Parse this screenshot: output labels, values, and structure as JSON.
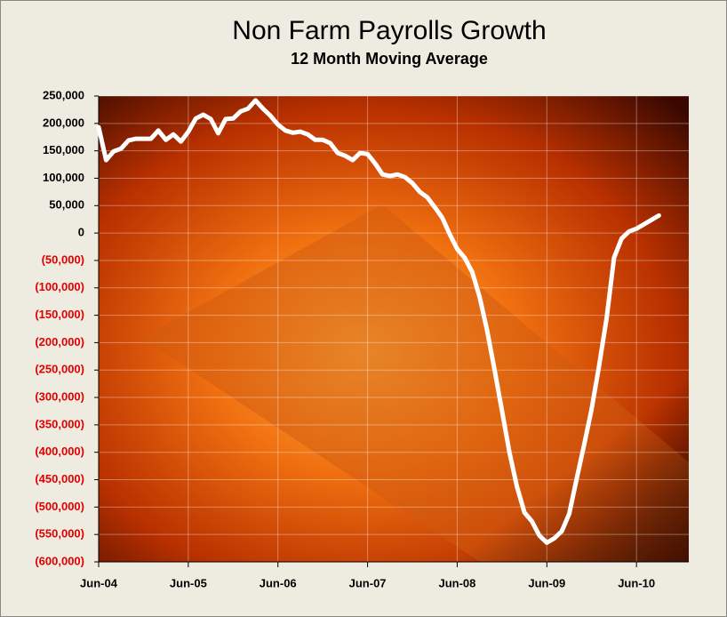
{
  "chart_data": {
    "type": "line",
    "title": "Non Farm Payrolls Growth",
    "subtitle": "12 Month Moving Average",
    "categories": [
      "Jun-04",
      null,
      null,
      null,
      null,
      null,
      null,
      null,
      null,
      null,
      null,
      null,
      "Jun-05",
      null,
      null,
      null,
      null,
      null,
      null,
      null,
      null,
      null,
      null,
      null,
      "Jun-06",
      null,
      null,
      null,
      null,
      null,
      null,
      null,
      null,
      null,
      null,
      null,
      "Jun-07",
      null,
      null,
      null,
      null,
      null,
      null,
      null,
      null,
      null,
      null,
      null,
      "Jun-08",
      null,
      null,
      null,
      null,
      null,
      null,
      null,
      null,
      null,
      null,
      null,
      "Jun-09",
      null,
      null,
      null,
      null,
      null,
      null,
      null,
      null,
      null,
      null,
      null,
      "Jun-10",
      null,
      null,
      null
    ],
    "series": [
      {
        "color": "#ffffff",
        "values": [
          193000,
          133000,
          149000,
          154000,
          169000,
          172000,
          172000,
          172000,
          187000,
          170000,
          180000,
          167000,
          185000,
          209000,
          216000,
          208000,
          182000,
          208000,
          209000,
          222000,
          227000,
          242000,
          227000,
          214000,
          198000,
          187000,
          183000,
          185000,
          180000,
          170000,
          170000,
          164000,
          146000,
          141000,
          133000,
          146000,
          144000,
          127000,
          107000,
          104000,
          107000,
          102000,
          91000,
          75000,
          65000,
          47000,
          28000,
          -2000,
          -29000,
          -45000,
          -71000,
          -117000,
          -178000,
          -250000,
          -325000,
          -401000,
          -463000,
          -510000,
          -526000,
          -552000,
          -565000,
          -557000,
          -544000,
          -512000,
          -448000,
          -386000,
          -321000,
          -242000,
          -156000,
          -45000,
          -10000,
          3000,
          8000,
          16000,
          24000,
          32000
        ]
      }
    ],
    "ylim": [
      -600000,
      250000
    ],
    "yticks": [
      {
        "value": -600000,
        "label": "(600,000)"
      },
      {
        "value": -550000,
        "label": "(550,000)"
      },
      {
        "value": -500000,
        "label": "(500,000)"
      },
      {
        "value": -450000,
        "label": "(450,000)"
      },
      {
        "value": -400000,
        "label": "(400,000)"
      },
      {
        "value": -350000,
        "label": "(350,000)"
      },
      {
        "value": -300000,
        "label": "(300,000)"
      },
      {
        "value": -250000,
        "label": "(250,000)"
      },
      {
        "value": -200000,
        "label": "(200,000)"
      },
      {
        "value": -150000,
        "label": "(150,000)"
      },
      {
        "value": -100000,
        "label": "(100,000)"
      },
      {
        "value": -50000,
        "label": "(50,000)"
      },
      0,
      {
        "value": 50000,
        "label": "50,000"
      },
      {
        "value": 100000,
        "label": "100,000"
      },
      {
        "value": 150000,
        "label": "150,000"
      },
      {
        "value": 200000,
        "label": "200,000"
      },
      {
        "value": 250000,
        "label": "250,000"
      }
    ],
    "negative_label_color": "#e00000",
    "grid": true
  }
}
